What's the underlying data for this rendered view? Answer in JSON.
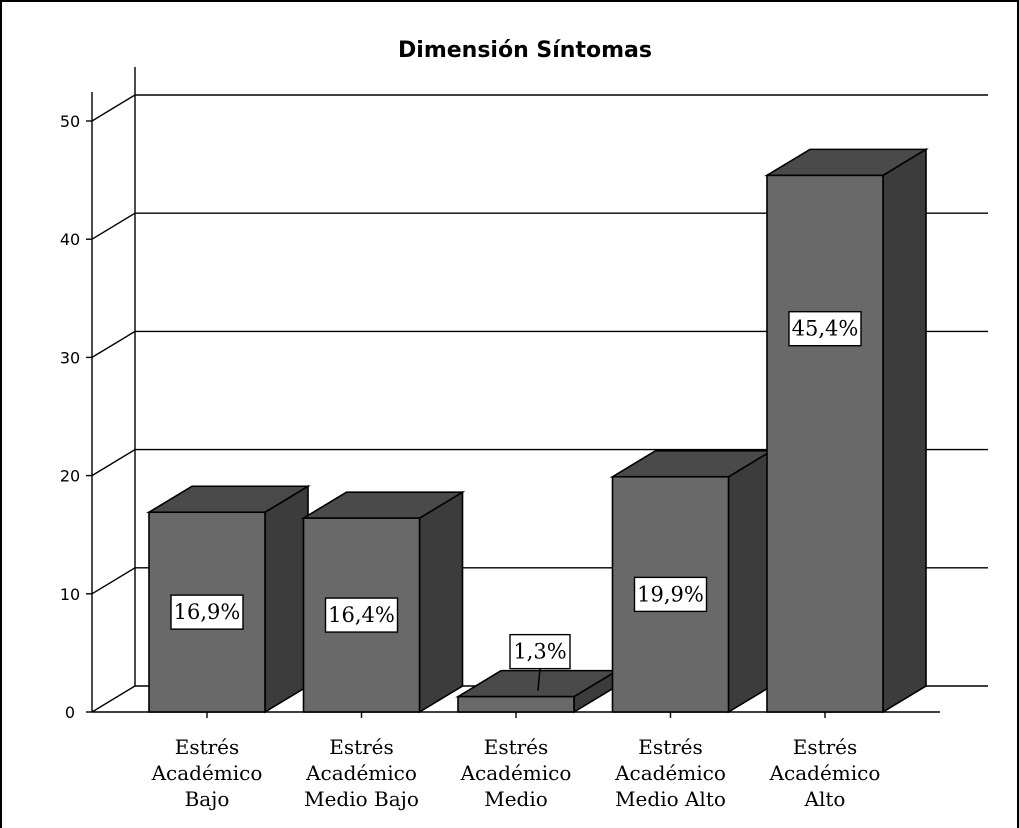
{
  "chart_data": {
    "type": "bar",
    "title": "Dimensión Síntomas",
    "categories": [
      [
        "Estrés",
        "Académico",
        "Bajo"
      ],
      [
        "Estrés",
        "Académico",
        "Medio Bajo"
      ],
      [
        "Estrés",
        "Académico",
        "Medio"
      ],
      [
        "Estrés",
        "Académico",
        "Medio Alto"
      ],
      [
        "Estrés",
        "Académico",
        "Alto"
      ]
    ],
    "values": [
      16.9,
      16.4,
      1.3,
      19.9,
      45.4
    ],
    "data_labels": [
      "16,9%",
      "16,4%",
      "1,3%",
      "19,9%",
      "45,4%"
    ],
    "yticks": [
      "0",
      "10",
      "20",
      "30",
      "40",
      "50"
    ],
    "ylim": [
      0,
      50
    ],
    "xlabel": "",
    "ylabel": "",
    "grid": true,
    "style": "3d",
    "colors": {
      "bar_front": "#696969",
      "bar_top": "#4a4a4a",
      "bar_side": "#3c3c3c",
      "label_bg": "#ffffff",
      "grid": "#000000"
    }
  }
}
